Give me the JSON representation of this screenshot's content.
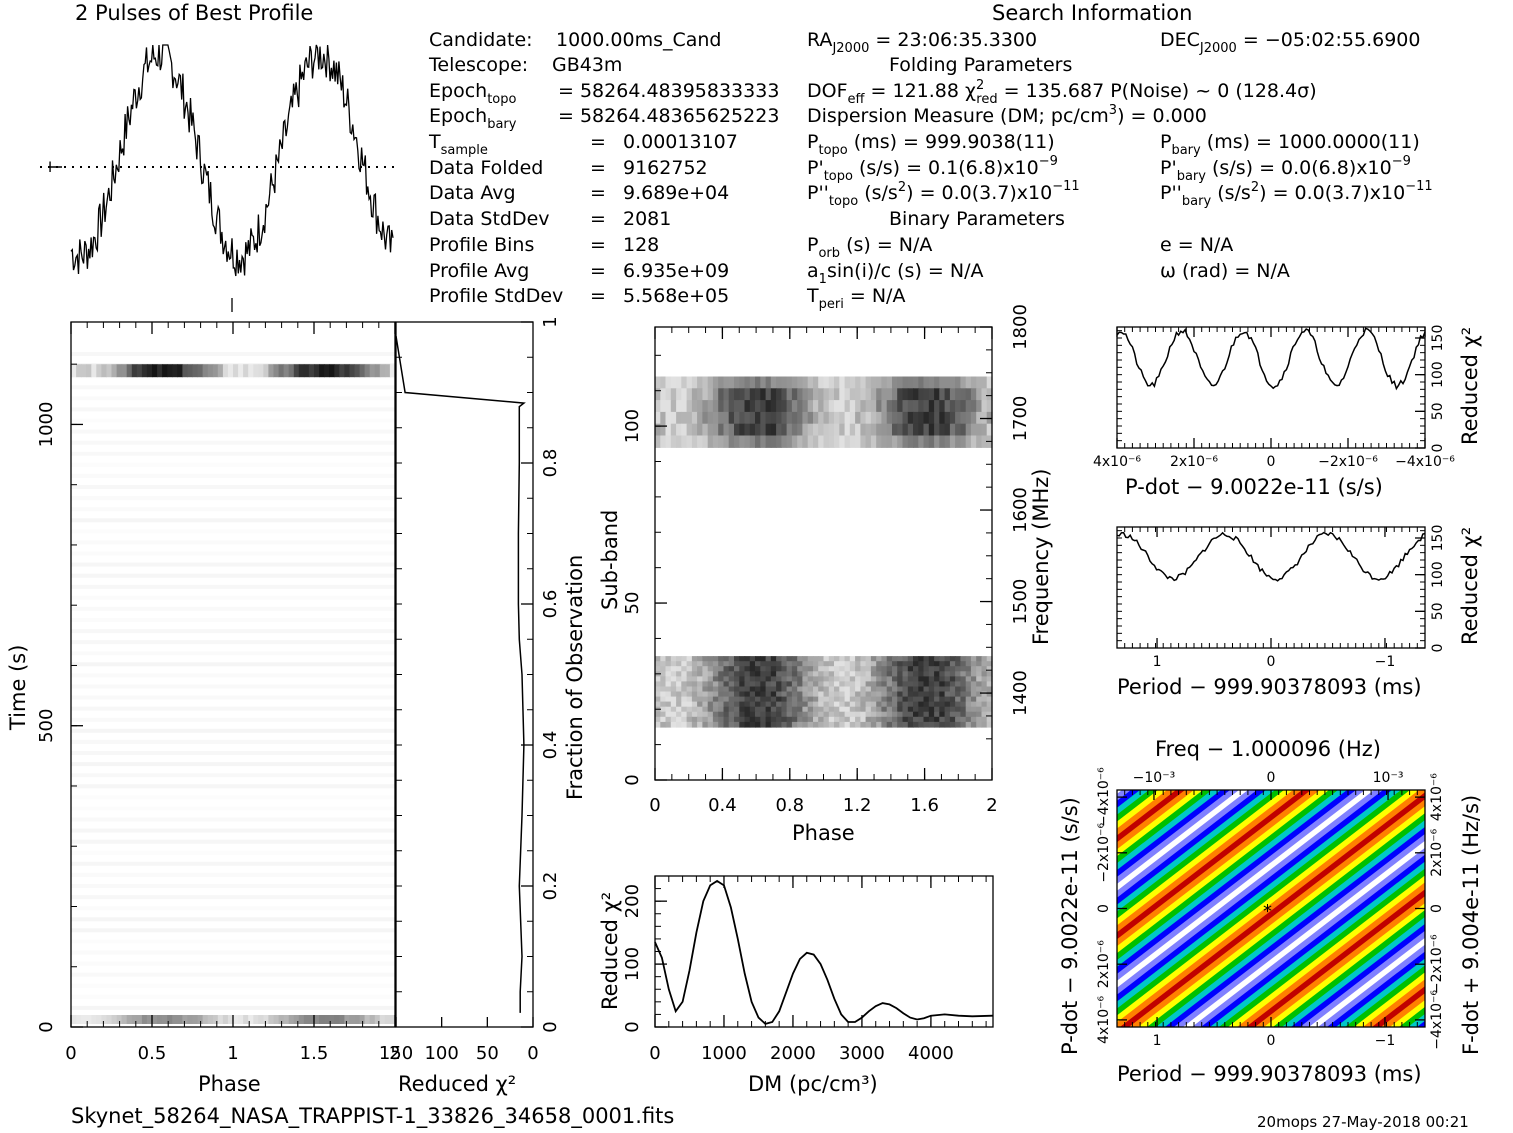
{
  "title": "2 Pulses of Best Profile",
  "search_info_title": "Search Information",
  "folding_title": "Folding Parameters",
  "binary_title": "Binary Parameters",
  "footer_file": "Skynet_58264_NASA_TRAPPIST-1_33826_34658_0001.fits",
  "footer_stamp": "20mops 27-May-2018 00:21",
  "info_left": [
    {
      "k": "Candidate:",
      "v": "1000.00ms_Cand"
    },
    {
      "k": "Telescope:",
      "v": "GB43m"
    },
    {
      "k": "Epoch_topo",
      "v": "= 58264.48395833333"
    },
    {
      "k": "Epoch_bary",
      "v": "= 58264.48365625223"
    },
    {
      "k": "T_sample",
      "v": "0.00013107"
    },
    {
      "k": "Data Folded",
      "v": "9162752"
    },
    {
      "k": "Data Avg",
      "v": "9.689e+04"
    },
    {
      "k": "Data StdDev",
      "v": "2081"
    },
    {
      "k": "Profile Bins",
      "v": "128"
    },
    {
      "k": "Profile Avg",
      "v": "6.935e+09"
    },
    {
      "k": "Profile StdDev",
      "v": "5.568e+05"
    }
  ],
  "info_mid": {
    "ra": "= 23:06:35.3300",
    "dof": "= 121.88",
    "chi2": "= 135.687",
    "pnoise": "P(Noise) ~ 0",
    "sigma": "(128.4σ)",
    "dm_line": "Dispersion Measure (DM; pc/cm",
    "dm_value": ") = 0.000",
    "ptopo": "(ms) =  999.9038(11)",
    "pdtopo": "(s/s) =  0.1(6.8)x10",
    "pddtopo": "= 0.0(3.7)x10",
    "porb": "(s) = N/A",
    "asini": "a",
    "asini_rest": "sin(i)/c (s) = N/A",
    "tperi": "= N/A"
  },
  "info_right": {
    "dec": "= −05:02:55.6900",
    "pbary": "(ms) =  1000.0000(11)",
    "pdbary": "(s/s) = 0.0(6.8)x10",
    "pddbary": "= 0.0(3.7)x10",
    "e": "e = N/A",
    "omega": "ω (rad) = N/A"
  },
  "chart_data": [
    {
      "type": "line",
      "title": "2 Pulses of Best Profile",
      "note": "two-pulse folded profile, 256 points over phase 0-2",
      "xlabel": "",
      "ylabel": "",
      "pulse_shape_peaks_phase": [
        0.55,
        1.55
      ],
      "pulse_shape_trough_phase": [
        0.05,
        1.05
      ]
    },
    {
      "type": "heatmap",
      "name": "time-phase",
      "xlabel": "Phase",
      "ylabel": "Time (s)",
      "xlim": [
        0,
        2
      ],
      "ylim": [
        0,
        1170
      ],
      "x_ticks": [
        "0",
        "0.5",
        "1",
        "1.5",
        "2"
      ],
      "y_ticks": [
        "0",
        "500",
        "1000"
      ],
      "bright_rows_time_s": [
        1090,
        10
      ]
    },
    {
      "type": "line",
      "name": "time-chi2",
      "xlabel": "Reduced χ²",
      "y2label": "Fraction of Observation",
      "x_ticks": [
        "150",
        "100",
        "50",
        "0"
      ],
      "y_ticks": [
        "0",
        "0.2",
        "0.4",
        "0.6",
        "0.8",
        "1"
      ],
      "points_chi2": [
        150,
        140,
        10,
        15,
        15,
        16,
        16,
        15,
        12,
        10,
        12,
        15,
        12,
        14,
        14
      ],
      "points_frac": [
        0.98,
        0.9,
        0.885,
        0.88,
        0.8,
        0.7,
        0.6,
        0.55,
        0.5,
        0.4,
        0.3,
        0.2,
        0.1,
        0.05,
        0.02
      ]
    },
    {
      "type": "heatmap",
      "name": "subband-phase",
      "xlabel": "Phase",
      "ylabel": "Sub-band",
      "y2label": "Frequency (MHz)",
      "x_ticks": [
        "0",
        "0.4",
        "0.8",
        "1.2",
        "1.6",
        "2"
      ],
      "y_ticks": [
        "0",
        "50",
        "100"
      ],
      "y2_ticks": [
        "1400",
        "1500",
        "1600",
        "1700",
        "1800"
      ],
      "ylim": [
        0,
        128
      ],
      "bands": [
        [
          94,
          114
        ],
        [
          15,
          35
        ]
      ]
    },
    {
      "type": "line",
      "name": "dm-chi2",
      "xlabel": "DM (pc/cm³)",
      "ylabel": "Reduced χ²",
      "x_ticks": [
        "0",
        "1000",
        "2000",
        "3000",
        "4000"
      ],
      "y_ticks": [
        "0",
        "100",
        "200"
      ],
      "xlim": [
        0,
        4900
      ],
      "ylim": [
        0,
        240
      ],
      "x": [
        0,
        100,
        200,
        300,
        400,
        500,
        600,
        700,
        800,
        900,
        1000,
        1100,
        1200,
        1300,
        1400,
        1500,
        1600,
        1700,
        1800,
        1900,
        2000,
        2100,
        2200,
        2300,
        2400,
        2500,
        2600,
        2700,
        2800,
        2900,
        3000,
        3100,
        3200,
        3300,
        3400,
        3500,
        3600,
        3700,
        3800,
        3900,
        4000,
        4200,
        4400,
        4600,
        4900
      ],
      "y": [
        135,
        110,
        60,
        25,
        40,
        90,
        150,
        200,
        225,
        232,
        225,
        190,
        140,
        85,
        40,
        15,
        5,
        8,
        25,
        55,
        85,
        108,
        118,
        115,
        100,
        75,
        45,
        20,
        8,
        8,
        15,
        25,
        33,
        38,
        36,
        30,
        22,
        15,
        12,
        14,
        18,
        20,
        18,
        17,
        18
      ]
    },
    {
      "type": "line",
      "name": "pdot-chi2",
      "xlabel": "P-dot − 9.0022e-11 (s/s)",
      "y2label": "Reduced χ²",
      "x_ticks": [
        "4x10⁻⁶",
        "2x10⁻⁶",
        "0",
        "−2x10⁻⁶",
        "−4x10⁻⁶"
      ],
      "y_ticks": [
        "0",
        "50",
        "100",
        "150"
      ],
      "periods": 5,
      "ymin": 85,
      "ymax": 160
    },
    {
      "type": "line",
      "name": "period-chi2",
      "xlabel": "Period − 999.90378093 (ms)",
      "y2label": "Reduced χ²",
      "x_ticks": [
        "1",
        "0",
        "−1"
      ],
      "y_ticks": [
        "0",
        "50",
        "100",
        "150"
      ],
      "periods": 3,
      "ymin": 95,
      "ymax": 155
    },
    {
      "type": "heatmap",
      "name": "p-pdot-plane",
      "title": "Freq − 1.000096 (Hz)",
      "xlabel": "Period − 999.90378093 (ms)",
      "ylabel": "P-dot − 9.0022e-11 (s/s)",
      "y2label": "F-dot + 9.004e-11 (Hz/s)",
      "x_ticks": [
        "1",
        "0",
        "−1"
      ],
      "x2_ticks": [
        "−10⁻³",
        "0",
        "10⁻³"
      ],
      "y_ticks": [
        "4x10⁻⁶",
        "2x10⁻⁶",
        "0",
        "−2x10⁻⁶",
        "−4x10⁻⁶"
      ],
      "y2_ticks": [
        "−4x10⁻⁶",
        "−2x10⁻⁶",
        "0",
        "2x10⁻⁶",
        "4x10⁻⁶"
      ],
      "colors": [
        "#c00000",
        "#ff8000",
        "#ffff00",
        "#00c000",
        "#00c8c8",
        "#0000ff",
        "#8080ff",
        "#ffffff"
      ]
    }
  ]
}
